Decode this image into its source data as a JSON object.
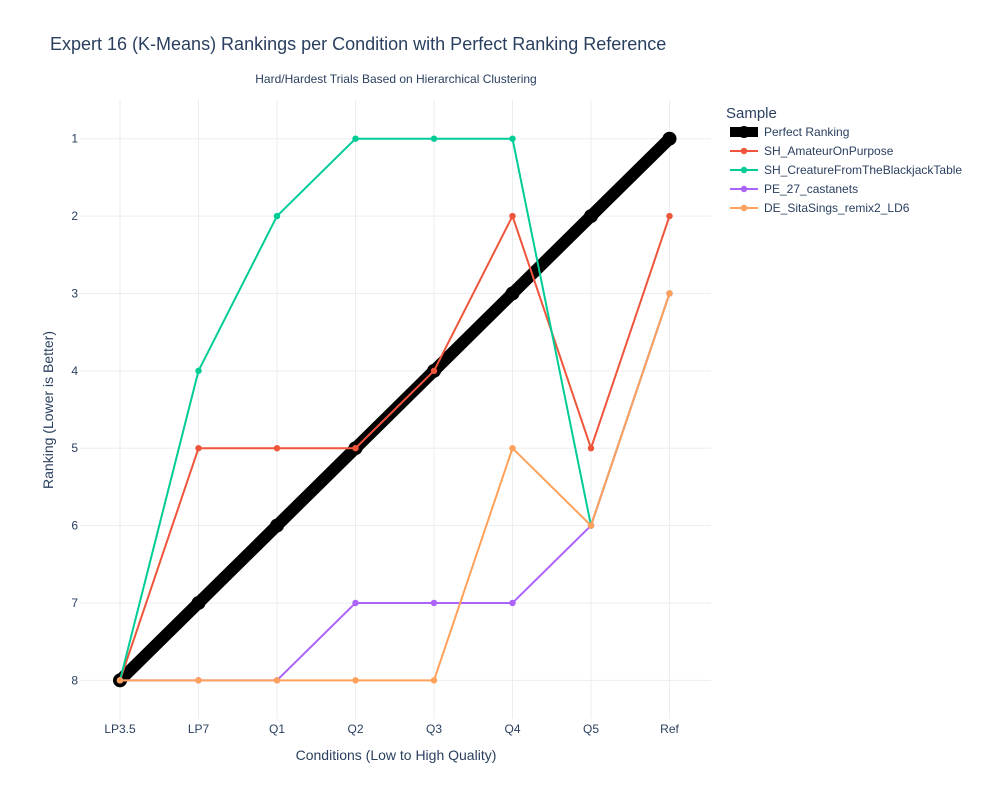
{
  "chart_data": {
    "type": "line",
    "title": "Expert 16 (K-Means) Rankings per Condition with Perfect Ranking Reference",
    "subtitle": "Hard/Hardest Trials Based on Hierarchical Clustering",
    "xlabel": "Conditions (Low to High Quality)",
    "ylabel": "Ranking (Lower is Better)",
    "categories": [
      "LP3.5",
      "LP7",
      "Q1",
      "Q2",
      "Q3",
      "Q4",
      "Q5",
      "Ref"
    ],
    "yticks": [
      1,
      2,
      3,
      4,
      5,
      6,
      7,
      8
    ],
    "ylim": [
      8.5,
      0.5
    ],
    "y_reversed": true,
    "grid": true,
    "legend_title": "Sample",
    "legend_position": "right",
    "series": [
      {
        "name": "Perfect Ranking",
        "values": [
          8,
          7,
          6,
          5,
          4,
          3,
          2,
          1
        ],
        "color": "#000000",
        "style": "thick"
      },
      {
        "name": "SH_AmateurOnPurpose",
        "values": [
          8,
          5,
          5,
          5,
          4,
          2,
          5,
          2
        ],
        "color": "#EF553B"
      },
      {
        "name": "SH_CreatureFromTheBlackjackTable",
        "values": [
          8,
          4,
          2,
          1,
          1,
          1,
          6,
          3
        ],
        "color": "#00CC96"
      },
      {
        "name": "PE_27_castanets",
        "values": [
          8,
          8,
          8,
          7,
          7,
          7,
          6,
          3
        ],
        "color": "#AB63FA"
      },
      {
        "name": "DE_SitaSings_remix2_LD6",
        "values": [
          8,
          8,
          8,
          8,
          8,
          5,
          6,
          3
        ],
        "color": "#FFA15A"
      }
    ]
  }
}
